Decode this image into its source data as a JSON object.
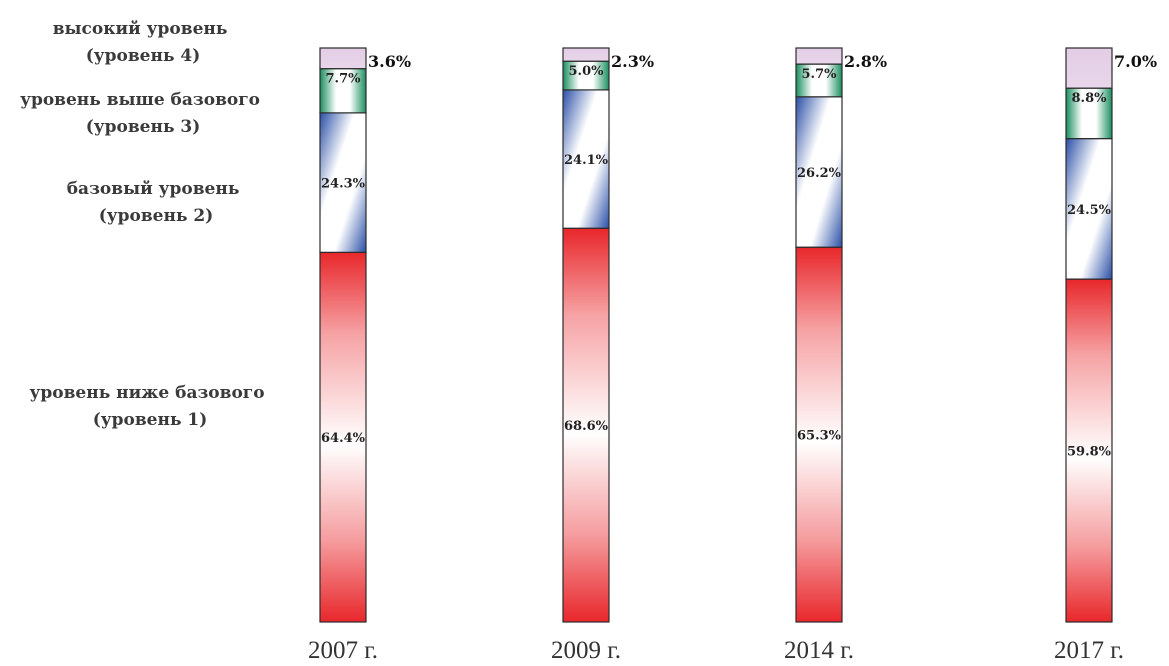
{
  "chart_data": {
    "type": "bar",
    "stacked": true,
    "categories": [
      "2007 г.",
      "2009 г.",
      "2014 г.",
      "2017 г."
    ],
    "series": [
      {
        "name": "уровень ниже базового (уровень 1)",
        "values": [
          64.4,
          68.6,
          65.3,
          59.8
        ],
        "labels": [
          "64.4%",
          "68.6%",
          "65.3%",
          "59.8%"
        ],
        "color": "#e8272b"
      },
      {
        "name": "базовый уровень (уровень 2)",
        "values": [
          24.3,
          24.1,
          26.2,
          24.5
        ],
        "labels": [
          "24.3%",
          "24.1%",
          "26.2%",
          "24.5%"
        ],
        "color": "#2a4fa8"
      },
      {
        "name": "уровень выше базового (уровень 3)",
        "values": [
          7.7,
          5.0,
          5.7,
          8.8
        ],
        "labels": [
          "7.7%",
          "5.0%",
          "5.7%",
          "8.8%"
        ],
        "color": "#1f9a6a"
      },
      {
        "name": "высокий уровень (уровень 4)",
        "values": [
          3.6,
          2.3,
          2.8,
          7.0
        ],
        "labels": [
          "3.6%",
          "2.3%",
          "2.8%",
          "7.0%"
        ],
        "color": "#e6d3e8"
      }
    ],
    "legend_lines": [
      [
        "высокий уровень",
        "(уровень 4)"
      ],
      [
        "уровень выше базового",
        "(уровень 3)"
      ],
      [
        "базовый уровень",
        "(уровень 2)"
      ],
      [
        "уровень ниже базового",
        "(уровень 1)"
      ]
    ],
    "ylim": [
      0,
      100
    ]
  }
}
